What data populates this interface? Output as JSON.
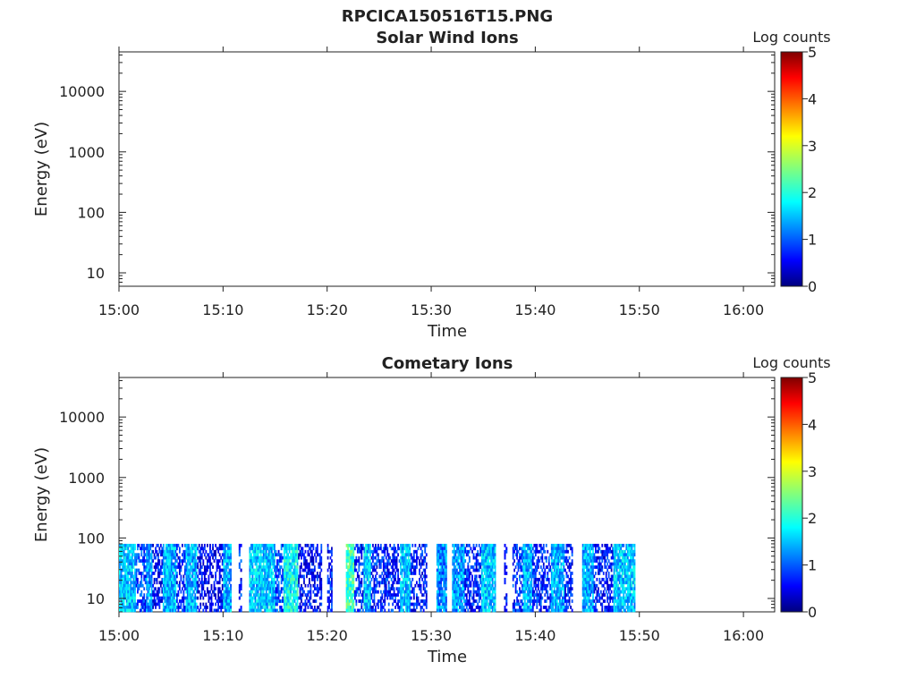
{
  "figure_title": "RPCICA150516T15.PNG",
  "chart_data": [
    {
      "type": "heatmap",
      "title": "Solar Wind Ions",
      "xlabel": "Time",
      "ylabel": "Energy (eV)",
      "x_tick_labels": [
        "15:00",
        "15:10",
        "15:20",
        "15:30",
        "15:40",
        "15:50",
        "16:00"
      ],
      "x_range_minutes": [
        0,
        63
      ],
      "y_scale": "log",
      "y_range": [
        6,
        45000
      ],
      "y_ticks": [
        10,
        100,
        1000,
        10000
      ],
      "y_tick_labels": [
        "10",
        "100",
        "1000",
        "10000"
      ],
      "colorbar": {
        "label": "Log counts",
        "range": [
          0,
          5
        ],
        "ticks": [
          "0",
          "1",
          "2",
          "3",
          "4",
          "5"
        ],
        "colormap": "jet"
      },
      "data_description": "empty",
      "intervals": []
    },
    {
      "type": "heatmap",
      "title": "Cometary Ions",
      "xlabel": "Time",
      "ylabel": "Energy (eV)",
      "x_tick_labels": [
        "15:00",
        "15:10",
        "15:20",
        "15:30",
        "15:40",
        "15:50",
        "16:00"
      ],
      "x_range_minutes": [
        0,
        63
      ],
      "y_scale": "log",
      "y_range": [
        6,
        45000
      ],
      "y_ticks": [
        10,
        100,
        1000,
        10000
      ],
      "y_tick_labels": [
        "10",
        "100",
        "1000",
        "10000"
      ],
      "colorbar": {
        "label": "Log counts",
        "range": [
          0,
          5
        ],
        "ticks": [
          "0",
          "1",
          "2",
          "3",
          "4",
          "5"
        ],
        "colormap": "jet"
      },
      "energy_max_eV": 80,
      "intervals": [
        {
          "start": 0.0,
          "end": 1.6,
          "level": 1.6
        },
        {
          "start": 1.6,
          "end": 2.6,
          "level": 0.9
        },
        {
          "start": 2.6,
          "end": 3.2,
          "level": 1.4
        },
        {
          "start": 3.2,
          "end": 4.2,
          "level": 0.6
        },
        {
          "start": 4.2,
          "end": 5.5,
          "level": 1.5
        },
        {
          "start": 5.5,
          "end": 6.4,
          "level": 0.8
        },
        {
          "start": 6.4,
          "end": 7.5,
          "level": 1.5
        },
        {
          "start": 7.5,
          "end": 10.0,
          "level": 0.5
        },
        {
          "start": 10.0,
          "end": 10.8,
          "level": 1.5
        },
        {
          "start": 11.5,
          "end": 11.8,
          "level": 0.8
        },
        {
          "start": 12.5,
          "end": 15.0,
          "level": 1.6
        },
        {
          "start": 15.0,
          "end": 15.8,
          "level": 0.9
        },
        {
          "start": 15.8,
          "end": 17.2,
          "level": 1.9
        },
        {
          "start": 17.2,
          "end": 19.5,
          "level": 0.6
        },
        {
          "start": 20.0,
          "end": 20.5,
          "level": 0.7
        },
        {
          "start": 21.8,
          "end": 22.6,
          "level": 2.2
        },
        {
          "start": 22.6,
          "end": 23.5,
          "level": 0.8
        },
        {
          "start": 23.5,
          "end": 24.2,
          "level": 1.6
        },
        {
          "start": 24.2,
          "end": 27.0,
          "level": 0.8
        },
        {
          "start": 27.0,
          "end": 28.0,
          "level": 1.6
        },
        {
          "start": 28.0,
          "end": 29.6,
          "level": 0.7
        },
        {
          "start": 30.5,
          "end": 31.5,
          "level": 1.3
        },
        {
          "start": 32.0,
          "end": 33.2,
          "level": 1.4
        },
        {
          "start": 33.2,
          "end": 34.8,
          "level": 0.8
        },
        {
          "start": 34.8,
          "end": 36.2,
          "level": 1.6
        },
        {
          "start": 37.0,
          "end": 37.3,
          "level": 0.6
        },
        {
          "start": 37.8,
          "end": 38.8,
          "level": 0.9
        },
        {
          "start": 38.8,
          "end": 39.7,
          "level": 1.5
        },
        {
          "start": 39.7,
          "end": 41.5,
          "level": 0.8
        },
        {
          "start": 41.5,
          "end": 42.8,
          "level": 1.5
        },
        {
          "start": 42.8,
          "end": 43.6,
          "level": 0.7
        },
        {
          "start": 44.5,
          "end": 45.6,
          "level": 1.5
        },
        {
          "start": 45.6,
          "end": 47.5,
          "level": 0.7
        },
        {
          "start": 47.5,
          "end": 49.6,
          "level": 1.6
        }
      ]
    }
  ]
}
